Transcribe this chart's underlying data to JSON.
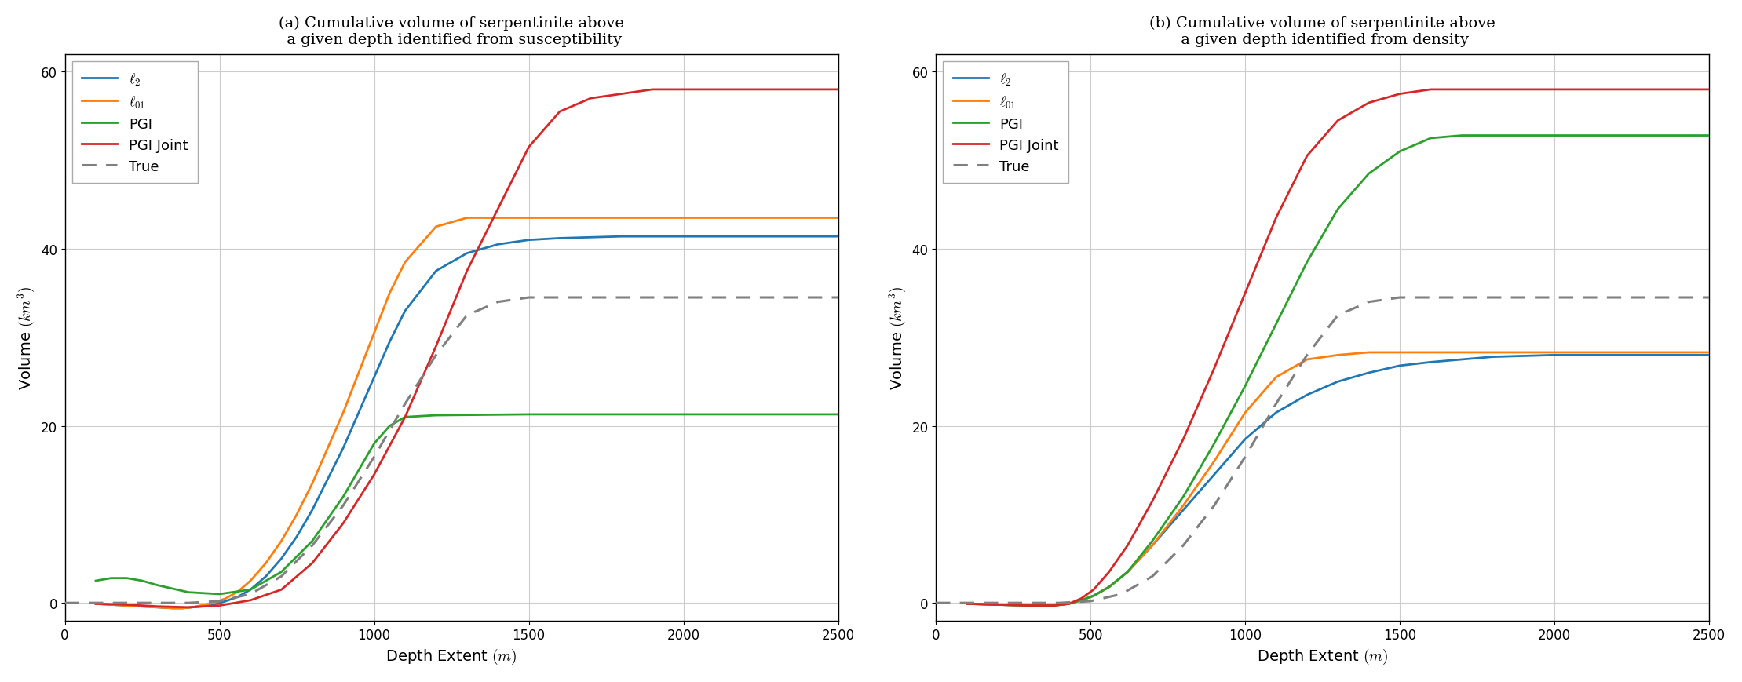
{
  "title_a": "(a) Cumulative volume of serpentinite above\n a given depth identified from susceptibility",
  "title_b": "(b) Cumulative volume of serpentinite above\n a given depth identified from density",
  "xlabel": "Depth Extent $(m)$",
  "ylabel": "Volume $(km^3)$",
  "xlim": [
    0,
    2500
  ],
  "ylim": [
    -2,
    62
  ],
  "yticks": [
    0,
    20,
    40,
    60
  ],
  "xticks": [
    0,
    500,
    1000,
    1500,
    2000,
    2500
  ],
  "colors": {
    "l2": "#1f77b4",
    "l01": "#ff7f0e",
    "PGI": "#2ca02c",
    "PGI_Joint": "#d62728",
    "True": "#808080"
  },
  "panel_a": {
    "l2_x": [
      100,
      200,
      300,
      350,
      380,
      410,
      440,
      480,
      520,
      560,
      600,
      650,
      700,
      750,
      800,
      850,
      900,
      950,
      1000,
      1050,
      1100,
      1200,
      1300,
      1400,
      1500,
      1600,
      1700,
      1800,
      1900,
      2000,
      2200,
      2500
    ],
    "l2_v": [
      -0.1,
      -0.3,
      -0.5,
      -0.6,
      -0.6,
      -0.5,
      -0.4,
      -0.2,
      0.2,
      0.7,
      1.5,
      3.0,
      5.0,
      7.5,
      10.5,
      14.0,
      17.5,
      21.5,
      25.5,
      29.5,
      33.0,
      37.5,
      39.5,
      40.5,
      41.0,
      41.2,
      41.3,
      41.4,
      41.4,
      41.4,
      41.4,
      41.4
    ],
    "l01_x": [
      100,
      200,
      300,
      350,
      380,
      410,
      440,
      480,
      520,
      560,
      600,
      650,
      700,
      750,
      800,
      850,
      900,
      950,
      1000,
      1050,
      1100,
      1200,
      1300,
      1400,
      1450,
      1500,
      1600,
      1700,
      1800,
      2000,
      2500
    ],
    "l01_v": [
      -0.1,
      -0.3,
      -0.5,
      -0.6,
      -0.6,
      -0.5,
      -0.3,
      0.0,
      0.5,
      1.3,
      2.5,
      4.5,
      7.0,
      10.0,
      13.5,
      17.5,
      21.5,
      26.0,
      30.5,
      35.0,
      38.5,
      42.5,
      43.5,
      43.5,
      43.5,
      43.5,
      43.5,
      43.5,
      43.5,
      43.5,
      43.5
    ],
    "PGI_x": [
      100,
      150,
      200,
      250,
      300,
      400,
      500,
      600,
      700,
      800,
      900,
      950,
      1000,
      1050,
      1100,
      1200,
      1500,
      2500
    ],
    "PGI_v": [
      2.5,
      2.8,
      2.8,
      2.5,
      2.0,
      1.2,
      1.0,
      1.5,
      3.5,
      7.0,
      12.0,
      15.0,
      18.0,
      20.0,
      21.0,
      21.2,
      21.3,
      21.3
    ],
    "PGI_Joint_x": [
      100,
      200,
      300,
      400,
      500,
      600,
      700,
      800,
      900,
      1000,
      1100,
      1200,
      1300,
      1400,
      1500,
      1600,
      1700,
      1800,
      1900,
      2000,
      2200,
      2500
    ],
    "PGI_Joint_v": [
      -0.1,
      -0.2,
      -0.4,
      -0.5,
      -0.3,
      0.3,
      1.5,
      4.5,
      9.0,
      14.5,
      21.0,
      29.0,
      37.5,
      44.5,
      51.5,
      55.5,
      57.0,
      57.5,
      58.0,
      58.0,
      58.0,
      58.0
    ],
    "True_x": [
      0,
      400,
      500,
      600,
      700,
      800,
      900,
      1000,
      1100,
      1200,
      1300,
      1400,
      1500,
      2500
    ],
    "True_v": [
      0.0,
      0.0,
      0.2,
      1.0,
      3.0,
      6.5,
      11.0,
      16.5,
      22.5,
      28.0,
      32.5,
      34.0,
      34.5,
      34.5
    ]
  },
  "panel_b": {
    "l2_x": [
      100,
      200,
      300,
      380,
      430,
      470,
      510,
      560,
      620,
      700,
      800,
      900,
      1000,
      1100,
      1200,
      1300,
      1400,
      1500,
      1600,
      1700,
      1800,
      2000,
      2500
    ],
    "l2_v": [
      -0.1,
      -0.2,
      -0.3,
      -0.3,
      -0.1,
      0.3,
      0.8,
      1.8,
      3.5,
      6.5,
      10.5,
      14.5,
      18.5,
      21.5,
      23.5,
      25.0,
      26.0,
      26.8,
      27.2,
      27.5,
      27.8,
      28.0,
      28.0
    ],
    "l01_x": [
      100,
      200,
      300,
      380,
      430,
      470,
      510,
      560,
      620,
      700,
      800,
      900,
      1000,
      1100,
      1200,
      1300,
      1400,
      1450,
      1500,
      1600,
      2000,
      2500
    ],
    "l01_v": [
      -0.1,
      -0.2,
      -0.3,
      -0.3,
      -0.1,
      0.3,
      0.8,
      1.8,
      3.5,
      6.5,
      11.0,
      16.0,
      21.5,
      25.5,
      27.5,
      28.0,
      28.3,
      28.3,
      28.3,
      28.3,
      28.3,
      28.3
    ],
    "PGI_x": [
      100,
      200,
      300,
      380,
      430,
      470,
      510,
      560,
      620,
      700,
      800,
      900,
      1000,
      1100,
      1200,
      1300,
      1400,
      1500,
      1600,
      1700,
      1800,
      1900,
      2000,
      2200,
      2500
    ],
    "PGI_v": [
      -0.1,
      -0.2,
      -0.3,
      -0.3,
      -0.1,
      0.3,
      0.8,
      1.8,
      3.5,
      7.0,
      12.0,
      18.0,
      24.5,
      31.5,
      38.5,
      44.5,
      48.5,
      51.0,
      52.5,
      52.8,
      52.8,
      52.8,
      52.8,
      52.8,
      52.8
    ],
    "PGI_Joint_x": [
      100,
      200,
      300,
      380,
      430,
      470,
      510,
      560,
      620,
      700,
      800,
      900,
      1000,
      1100,
      1200,
      1300,
      1400,
      1500,
      1600,
      1700,
      1800,
      1900,
      2000,
      2200,
      2500
    ],
    "PGI_Joint_v": [
      -0.1,
      -0.2,
      -0.3,
      -0.3,
      -0.1,
      0.5,
      1.5,
      3.5,
      6.5,
      11.5,
      18.5,
      26.5,
      35.0,
      43.5,
      50.5,
      54.5,
      56.5,
      57.5,
      58.0,
      58.0,
      58.0,
      58.0,
      58.0,
      58.0,
      58.0
    ],
    "True_x": [
      0,
      400,
      500,
      600,
      700,
      800,
      900,
      1000,
      1100,
      1200,
      1300,
      1400,
      1500,
      2500
    ],
    "True_v": [
      0.0,
      0.0,
      0.2,
      1.0,
      3.0,
      6.5,
      11.0,
      16.5,
      22.5,
      28.0,
      32.5,
      34.0,
      34.5,
      34.5
    ]
  },
  "linewidth": 2.0,
  "background_color": "#ffffff"
}
